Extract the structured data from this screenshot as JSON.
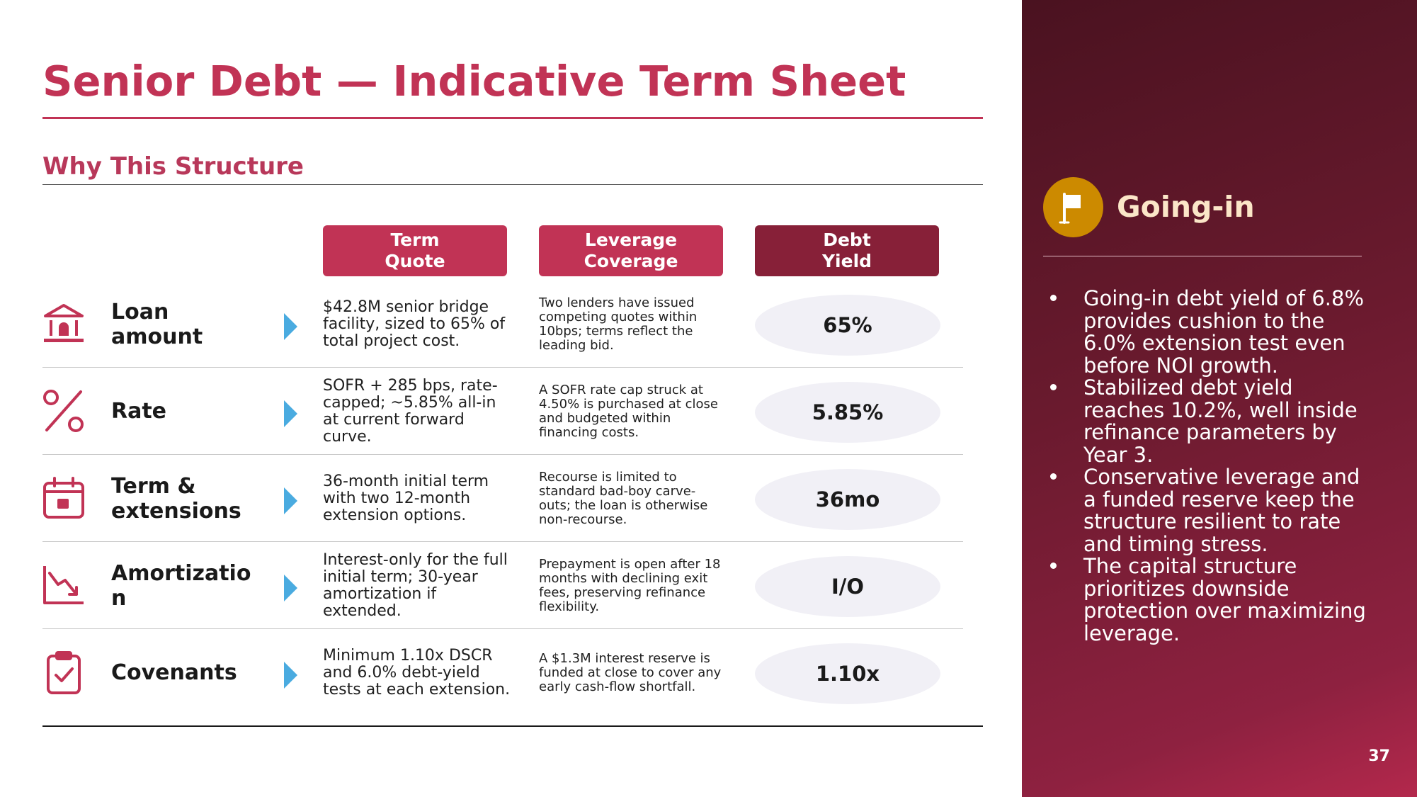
{
  "slide": {
    "title": "Senior Debt — Indicative Term Sheet",
    "subtitle": "Why This Structure",
    "page_number": "37"
  },
  "columns": [
    {
      "line1": "Term",
      "line2": "Quote"
    },
    {
      "line1": "Leverage",
      "line2": "Coverage"
    },
    {
      "line1": "Debt",
      "line2": "Yield"
    }
  ],
  "rows": [
    {
      "icon": "bank-icon",
      "label_line1": "Loan",
      "label_line2": "amount",
      "term_quote": "$42.8M senior bridge facility, sized to 65% of total project cost.",
      "leverage_coverage": "Two lenders have issued competing quotes within 10bps; terms reflect the leading bid.",
      "debt_yield": "65%"
    },
    {
      "icon": "percent-icon",
      "label_line1": "Rate",
      "label_line2": "",
      "term_quote": "SOFR + 285 bps, rate-capped; ~5.85% all-in at current forward curve.",
      "leverage_coverage": "A SOFR rate cap struck at 4.50% is purchased at close and budgeted within financing costs.",
      "debt_yield": "5.85%"
    },
    {
      "icon": "calendar-icon",
      "label_line1": "Term &",
      "label_line2": "extensions",
      "term_quote": "36-month initial term with two 12-month extension options.",
      "leverage_coverage": "Recourse is limited to standard bad-boy carve-outs; the loan is otherwise non-recourse.",
      "debt_yield": "36mo"
    },
    {
      "icon": "chart-down-icon",
      "label_line1": "Amortizatio",
      "label_line2": "n",
      "term_quote": "Interest-only for the full initial term; 30-year amortization if extended.",
      "leverage_coverage": "Prepayment is open after 18 months with declining exit fees, preserving refinance flexibility.",
      "debt_yield": "I/O"
    },
    {
      "icon": "clipboard-check-icon",
      "label_line1": "Covenants",
      "label_line2": "",
      "term_quote": "Minimum 1.10x DSCR and 6.0% debt-yield tests at each extension.",
      "leverage_coverage": "A $1.3M interest reserve is funded at close to cover any early cash-flow shortfall.",
      "debt_yield": "1.10x"
    }
  ],
  "side_panel": {
    "icon": "flag-icon",
    "heading": "Going-in",
    "bullets": [
      "Going-in debt yield of 6.8% provides cushion to the 6.0% extension test even before NOI growth.",
      "Stabilized debt yield reaches 10.2%, well inside refinance parameters by Year 3.",
      "Conservative leverage and a funded reserve keep the structure resilient to rate and timing stress.",
      "The capital structure prioritizes downside protection over maximizing leverage."
    ]
  },
  "colors": {
    "accent": "#c13355",
    "accent_dark": "#872038",
    "arrow": "#4aabe0",
    "side_panel": "#6a1a2e",
    "flag_badge": "#cc8a00"
  }
}
